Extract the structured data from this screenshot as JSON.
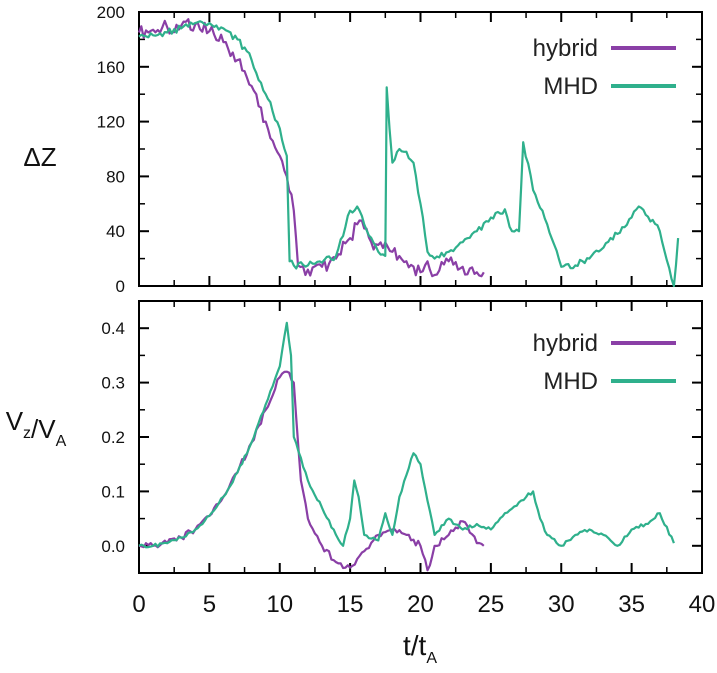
{
  "chart_data": [
    {
      "type": "line",
      "ylabel": "ΔZ",
      "xlim": [
        0,
        40
      ],
      "ylim": [
        0,
        200
      ],
      "yticks": [
        "0",
        "40",
        "80",
        "120",
        "160",
        "200"
      ],
      "legend_position": "top-right",
      "series": [
        {
          "name": "hybrid",
          "color": "#8a3fa6",
          "x": [
            0,
            1,
            2,
            3,
            4,
            5,
            6,
            7,
            8,
            9,
            10,
            10.5,
            11,
            11.3,
            12,
            13,
            14,
            15,
            15.5,
            16,
            16.5,
            17,
            18,
            19,
            20,
            20.5,
            21,
            22,
            23,
            24,
            24.5
          ],
          "y": [
            185,
            187,
            189,
            190,
            191,
            186,
            178,
            165,
            146,
            120,
            95,
            80,
            55,
            15,
            12,
            14,
            20,
            35,
            45,
            42,
            32,
            30,
            25,
            18,
            10,
            18,
            8,
            18,
            14,
            10,
            10
          ]
        },
        {
          "name": "MHD",
          "color": "#2fb08c",
          "x": [
            0,
            1,
            2,
            3,
            4,
            5,
            6,
            7,
            8,
            9,
            10,
            10.5,
            10.7,
            11,
            12,
            13,
            14,
            15,
            15.5,
            16,
            17,
            17.5,
            17.6,
            18,
            18.5,
            19,
            19.5,
            20,
            20.5,
            21,
            22,
            23,
            24,
            25,
            26,
            26.5,
            27,
            27.3,
            28,
            29,
            30,
            31,
            32,
            33,
            34,
            35,
            35.5,
            36,
            37,
            38,
            38.3
          ],
          "y": [
            182,
            183,
            185,
            188,
            192,
            192,
            188,
            180,
            165,
            140,
            115,
            95,
            18,
            15,
            15,
            17,
            22,
            55,
            58,
            45,
            25,
            22,
            145,
            90,
            100,
            98,
            90,
            60,
            25,
            20,
            25,
            32,
            40,
            50,
            56,
            40,
            40,
            105,
            70,
            45,
            14,
            15,
            20,
            28,
            38,
            50,
            58,
            52,
            40,
            0,
            35
          ]
        }
      ]
    },
    {
      "type": "line",
      "xlabel": "t/t_A",
      "ylabel": "V_z/V_A",
      "xlim": [
        0,
        40
      ],
      "ylim": [
        -0.05,
        0.45
      ],
      "xticks": [
        "0",
        "5",
        "10",
        "15",
        "20",
        "25",
        "30",
        "35",
        "40"
      ],
      "yticks": [
        "0.0",
        "0.1",
        "0.2",
        "0.3",
        "0.4"
      ],
      "legend_position": "top-right",
      "series": [
        {
          "name": "hybrid",
          "color": "#8a3fa6",
          "x": [
            0,
            1,
            2,
            3,
            4,
            5,
            6,
            7,
            8,
            9,
            10,
            10.5,
            11,
            11.5,
            12,
            13,
            14,
            15,
            16,
            17,
            18,
            19,
            20,
            20.5,
            21,
            22,
            23,
            24,
            24.5
          ],
          "y": [
            0.0,
            0.0,
            0.005,
            0.015,
            0.03,
            0.055,
            0.09,
            0.135,
            0.19,
            0.25,
            0.31,
            0.32,
            0.3,
            0.12,
            0.05,
            0.0,
            -0.03,
            -0.04,
            -0.01,
            0.02,
            0.03,
            0.02,
            0.0,
            -0.045,
            0.0,
            0.02,
            0.045,
            0.005,
            0.0
          ]
        },
        {
          "name": "MHD",
          "color": "#2fb08c",
          "x": [
            0,
            1,
            2,
            3,
            4,
            5,
            6,
            7,
            8,
            9,
            10,
            10.5,
            10.8,
            11,
            12,
            13,
            14,
            14.5,
            15,
            15.3,
            15.6,
            16,
            17,
            17.5,
            18,
            18.5,
            19,
            19.5,
            20,
            21,
            22,
            23,
            24,
            25,
            26,
            27,
            28,
            28.5,
            29,
            30,
            31,
            32,
            33,
            34,
            35,
            36,
            37,
            38
          ],
          "y": [
            0.0,
            0.0,
            0.005,
            0.015,
            0.03,
            0.055,
            0.09,
            0.135,
            0.19,
            0.26,
            0.33,
            0.41,
            0.35,
            0.2,
            0.12,
            0.07,
            0.02,
            0.0,
            0.05,
            0.12,
            0.09,
            0.02,
            0.01,
            0.06,
            0.02,
            0.09,
            0.13,
            0.17,
            0.15,
            0.02,
            0.05,
            0.03,
            0.04,
            0.03,
            0.06,
            0.08,
            0.1,
            0.05,
            0.02,
            0.0,
            0.02,
            0.03,
            0.02,
            0.0,
            0.03,
            0.04,
            0.06,
            0.005
          ]
        }
      ]
    }
  ]
}
